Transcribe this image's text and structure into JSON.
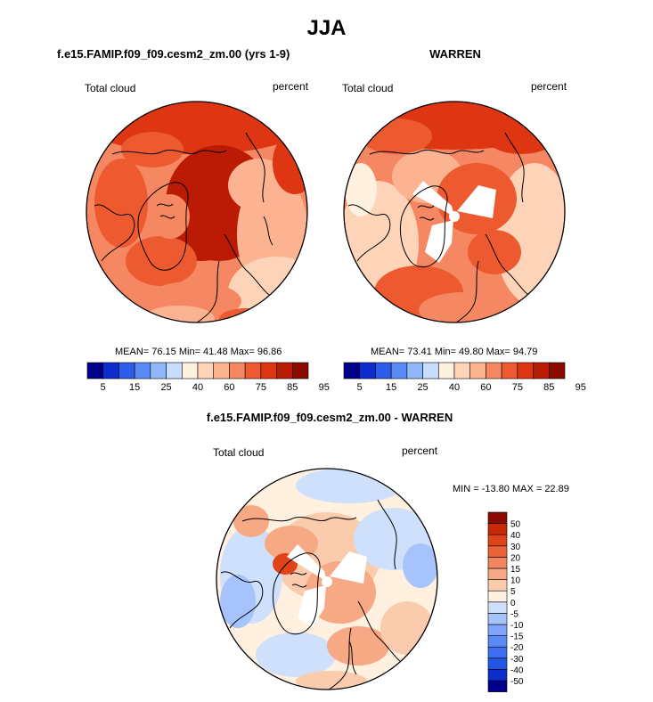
{
  "figure": {
    "title": "JJA"
  },
  "colors": {
    "abs_scale": [
      "#00008c",
      "#0a2dcc",
      "#2c5cea",
      "#5a8af5",
      "#90b5fa",
      "#c8dcfd",
      "#fff0e0",
      "#fdd4b8",
      "#fbb392",
      "#f58862",
      "#ed5a30",
      "#de3512",
      "#bb1a04",
      "#8c0a00"
    ],
    "diff_scale": [
      "#00008c",
      "#0a2dcc",
      "#2456e6",
      "#3c70f0",
      "#5a8af5",
      "#7fa6f8",
      "#a6c3fb",
      "#cfe0fd",
      "#fff0e0",
      "#fbcbae",
      "#f7a884",
      "#f2875f",
      "#ec6238",
      "#e04318",
      "#c62808",
      "#8c0a00"
    ]
  },
  "chart_data": [
    {
      "type": "heatmap",
      "projection": "north-polar-stereographic",
      "title": "f.e15.FAMIP.f09_f09.cesm2_zm.00 (yrs 1-9)",
      "left_label": "Total cloud",
      "right_label": "percent",
      "stats": {
        "mean": 76.15,
        "min": 41.48,
        "max": 96.86
      },
      "stats_text": "MEAN=  76.15  Min=  41.48  Max=  96.86",
      "levels": [
        5,
        10,
        15,
        20,
        25,
        30,
        40,
        50,
        60,
        70,
        75,
        80,
        85,
        90,
        95
      ],
      "tick_labels": [
        "5",
        "15",
        "25",
        "40",
        "60",
        "75",
        "85",
        "95"
      ]
    },
    {
      "type": "heatmap",
      "projection": "north-polar-stereographic",
      "title": "WARREN",
      "left_label": "Total cloud",
      "right_label": "percent",
      "stats": {
        "mean": 73.41,
        "min": 49.8,
        "max": 94.79
      },
      "stats_text": "MEAN=  73.41  Min=  49.80  Max=  94.79",
      "levels": [
        5,
        10,
        15,
        20,
        25,
        30,
        40,
        50,
        60,
        70,
        75,
        80,
        85,
        90,
        95
      ],
      "tick_labels": [
        "5",
        "15",
        "25",
        "40",
        "60",
        "75",
        "85",
        "95"
      ]
    },
    {
      "type": "heatmap",
      "projection": "north-polar-stereographic",
      "title": "f.e15.FAMIP.f09_f09.cesm2_zm.00 - WARREN",
      "left_label": "Total cloud",
      "right_label": "percent",
      "stats": {
        "min": -13.8,
        "max": 22.89
      },
      "stats_text": "MIN = -13.80 MAX =  22.89",
      "levels": [
        -50,
        -40,
        -30,
        -20,
        -15,
        -10,
        -5,
        0,
        5,
        10,
        15,
        20,
        30,
        40,
        50
      ],
      "tick_labels": [
        "50",
        "40",
        "30",
        "20",
        "15",
        "10",
        "5",
        "0",
        "-5",
        "-10",
        "-15",
        "-20",
        "-30",
        "-40",
        "-50"
      ]
    }
  ]
}
